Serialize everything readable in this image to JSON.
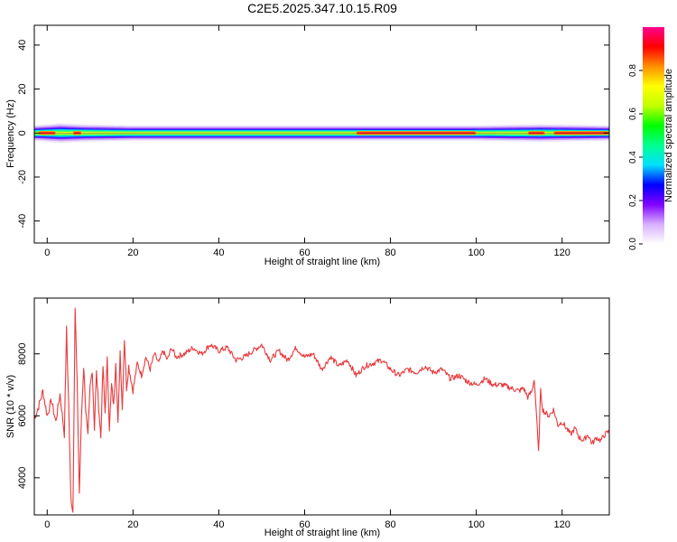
{
  "figure": {
    "title": "C2E5.2025.347.10.15.R09"
  },
  "chart_data": [
    {
      "type": "heatmap",
      "title": "",
      "xlabel": "Height of straight line (km)",
      "ylabel": "Frequency (Hz)",
      "xlim": [
        -3,
        131
      ],
      "ylim": [
        -50,
        49
      ],
      "xticks": [
        "0",
        "20",
        "40",
        "60",
        "80",
        "100",
        "120"
      ],
      "yticks": [
        "-40",
        "-20",
        "0",
        "20",
        "40"
      ],
      "grid": false,
      "band_center_hz": 0,
      "band_core_halfwidth_hz": [
        [
          -3,
          1.2
        ],
        [
          3,
          1.3
        ],
        [
          5,
          1.3
        ],
        [
          8,
          1.2
        ],
        [
          15,
          1.0
        ],
        [
          30,
          1.2
        ],
        [
          60,
          1.3
        ],
        [
          80,
          1.5
        ],
        [
          100,
          1.2
        ],
        [
          115,
          1.0
        ],
        [
          131,
          1.3
        ]
      ],
      "band_total_halfwidth_hz": [
        [
          -3,
          3.5
        ],
        [
          3,
          4.5
        ],
        [
          8,
          4.0
        ],
        [
          20,
          3.5
        ],
        [
          40,
          3.5
        ],
        [
          60,
          3.5
        ],
        [
          80,
          3.5
        ],
        [
          100,
          3.5
        ],
        [
          115,
          4.0
        ],
        [
          131,
          3.5
        ]
      ],
      "colorbar": {
        "label": "Normalized spectral amplitude",
        "range": [
          0,
          1
        ],
        "ticks": [
          "0.0",
          "0.2",
          "0.4",
          "0.6",
          "0.8"
        ],
        "colors": [
          "#ffffff",
          "#d8b0ff",
          "#8000ff",
          "#0000ff",
          "#00e0ff",
          "#00ff90",
          "#00ff00",
          "#c0ff00",
          "#ffff00",
          "#ff9000",
          "#ff0000",
          "#ff0090"
        ]
      },
      "peak_segments_km": [
        [
          -2,
          2
        ],
        [
          6,
          8
        ],
        [
          72,
          100
        ],
        [
          112,
          116
        ],
        [
          118,
          131
        ]
      ]
    },
    {
      "type": "line",
      "title": "",
      "xlabel": "Height of straight line (km)",
      "ylabel": "SNR (10 * v/v)",
      "xlim": [
        -3,
        131
      ],
      "ylim": [
        2800,
        9800
      ],
      "xticks": [
        "0",
        "20",
        "40",
        "60",
        "80",
        "100",
        "120"
      ],
      "yticks": [
        "4000",
        "6000",
        "8000"
      ],
      "grid": false,
      "color": "#e8393c",
      "series": [
        {
          "name": "",
          "x": [
            -3,
            -2,
            -1,
            0,
            1,
            2,
            3,
            4,
            4.5,
            5,
            5.5,
            6,
            6.5,
            7,
            7.5,
            8,
            8.5,
            9,
            9.5,
            10,
            10.5,
            11,
            11.5,
            12,
            12.5,
            13,
            13.5,
            14,
            14.5,
            15,
            15.5,
            16,
            16.5,
            17,
            17.5,
            18,
            18.5,
            19,
            20,
            21,
            22,
            23,
            24,
            25,
            26,
            27,
            28,
            29,
            30,
            32,
            34,
            36,
            38,
            40,
            42,
            44,
            46,
            48,
            50,
            52,
            54,
            56,
            58,
            60,
            62,
            64,
            66,
            68,
            70,
            72,
            74,
            76,
            78,
            80,
            82,
            84,
            86,
            88,
            90,
            92,
            94,
            96,
            98,
            100,
            102,
            104,
            106,
            108,
            110,
            111,
            112,
            113,
            113.5,
            114,
            114.5,
            115,
            115.5,
            116,
            117,
            118,
            119,
            120,
            121,
            122,
            123,
            124,
            125,
            126,
            127,
            128,
            129,
            130,
            131
          ],
          "y": [
            5900,
            6300,
            6800,
            6000,
            6500,
            5800,
            6700,
            5400,
            8800,
            6500,
            3400,
            2900,
            9500,
            7000,
            3500,
            6000,
            7600,
            6200,
            5300,
            6900,
            7500,
            5600,
            7400,
            6300,
            5300,
            7600,
            6100,
            7800,
            5600,
            7000,
            6300,
            7800,
            5700,
            8100,
            6200,
            8500,
            6900,
            7600,
            6800,
            7700,
            7300,
            7900,
            7500,
            8000,
            7700,
            8100,
            7800,
            8200,
            7900,
            8000,
            8200,
            8000,
            8300,
            8100,
            8200,
            7800,
            7900,
            8100,
            8300,
            7800,
            8100,
            7800,
            8200,
            7900,
            8000,
            7500,
            7900,
            7600,
            7800,
            7300,
            7600,
            7700,
            7800,
            7500,
            7300,
            7500,
            7400,
            7600,
            7400,
            7500,
            7200,
            7300,
            7100,
            7000,
            7200,
            7000,
            7000,
            6900,
            6800,
            6900,
            6600,
            6800,
            7200,
            6100,
            4800,
            6800,
            6200,
            6100,
            6000,
            6200,
            5700,
            5800,
            5600,
            5400,
            5600,
            5300,
            5200,
            5400,
            5100,
            5300,
            5200,
            5400,
            5500
          ]
        }
      ]
    }
  ]
}
